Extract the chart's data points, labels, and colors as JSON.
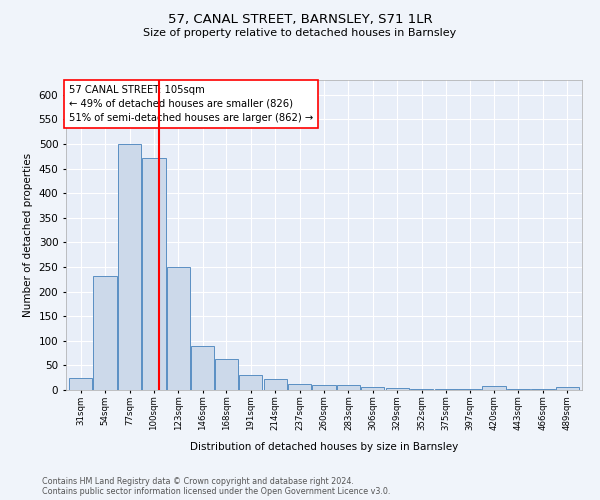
{
  "title": "57, CANAL STREET, BARNSLEY, S71 1LR",
  "subtitle": "Size of property relative to detached houses in Barnsley",
  "xlabel": "Distribution of detached houses by size in Barnsley",
  "ylabel": "Number of detached properties",
  "annotation_line1": "57 CANAL STREET: 105sqm",
  "annotation_line2": "← 49% of detached houses are smaller (826)",
  "annotation_line3": "51% of semi-detached houses are larger (862) →",
  "footnote1": "Contains HM Land Registry data © Crown copyright and database right 2024.",
  "footnote2": "Contains public sector information licensed under the Open Government Licence v3.0.",
  "bar_color": "#ccd9ea",
  "bar_edge_color": "#5a8fc3",
  "red_line_x": 105,
  "background_color": "#e8eef8",
  "fig_background": "#f0f4fa",
  "categories": [
    31,
    54,
    77,
    100,
    123,
    146,
    168,
    191,
    214,
    237,
    260,
    283,
    306,
    329,
    352,
    375,
    397,
    420,
    443,
    466,
    489
  ],
  "tick_labels": [
    "31sqm",
    "54sqm",
    "77sqm",
    "100sqm",
    "123sqm",
    "146sqm",
    "168sqm",
    "191sqm",
    "214sqm",
    "237sqm",
    "260sqm",
    "283sqm",
    "306sqm",
    "329sqm",
    "352sqm",
    "375sqm",
    "397sqm",
    "420sqm",
    "443sqm",
    "466sqm",
    "489sqm"
  ],
  "values": [
    25,
    231,
    500,
    472,
    250,
    90,
    63,
    30,
    22,
    13,
    11,
    11,
    6,
    4,
    3,
    3,
    3,
    8,
    2,
    2,
    7
  ],
  "ylim": [
    0,
    630
  ],
  "yticks": [
    0,
    50,
    100,
    150,
    200,
    250,
    300,
    350,
    400,
    450,
    500,
    550,
    600
  ]
}
